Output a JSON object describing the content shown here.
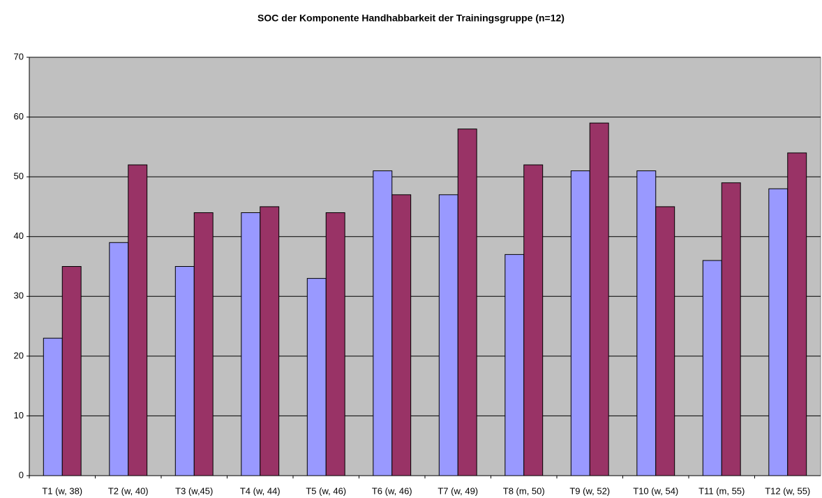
{
  "chart_data": {
    "type": "bar",
    "title": "SOC der Komponente Handhabbarkeit der Trainingsgruppe (n=12)",
    "categories": [
      "T1 (w, 38)",
      "T2 (w, 40)",
      "T3 (w,45)",
      "T4 (w, 44)",
      "T5 (w, 46)",
      "T6 (w, 46)",
      "T7 (w, 49)",
      "T8 (m, 50)",
      "T9 (w, 52)",
      "T10 (w, 54)",
      "T11 (m, 55)",
      "T12 (w, 55)"
    ],
    "series": [
      {
        "color": "#9999ff",
        "values": [
          23,
          39,
          35,
          44,
          33,
          51,
          47,
          37,
          51,
          51,
          36,
          48
        ]
      },
      {
        "color": "#993366",
        "values": [
          35,
          52,
          44,
          45,
          44,
          47,
          58,
          52,
          59,
          45,
          49,
          54
        ]
      }
    ],
    "ylim": [
      0,
      70
    ],
    "yticks": [
      0,
      10,
      20,
      30,
      40,
      50,
      60,
      70
    ],
    "grid": true,
    "plot_background": "#c0c0c0"
  }
}
